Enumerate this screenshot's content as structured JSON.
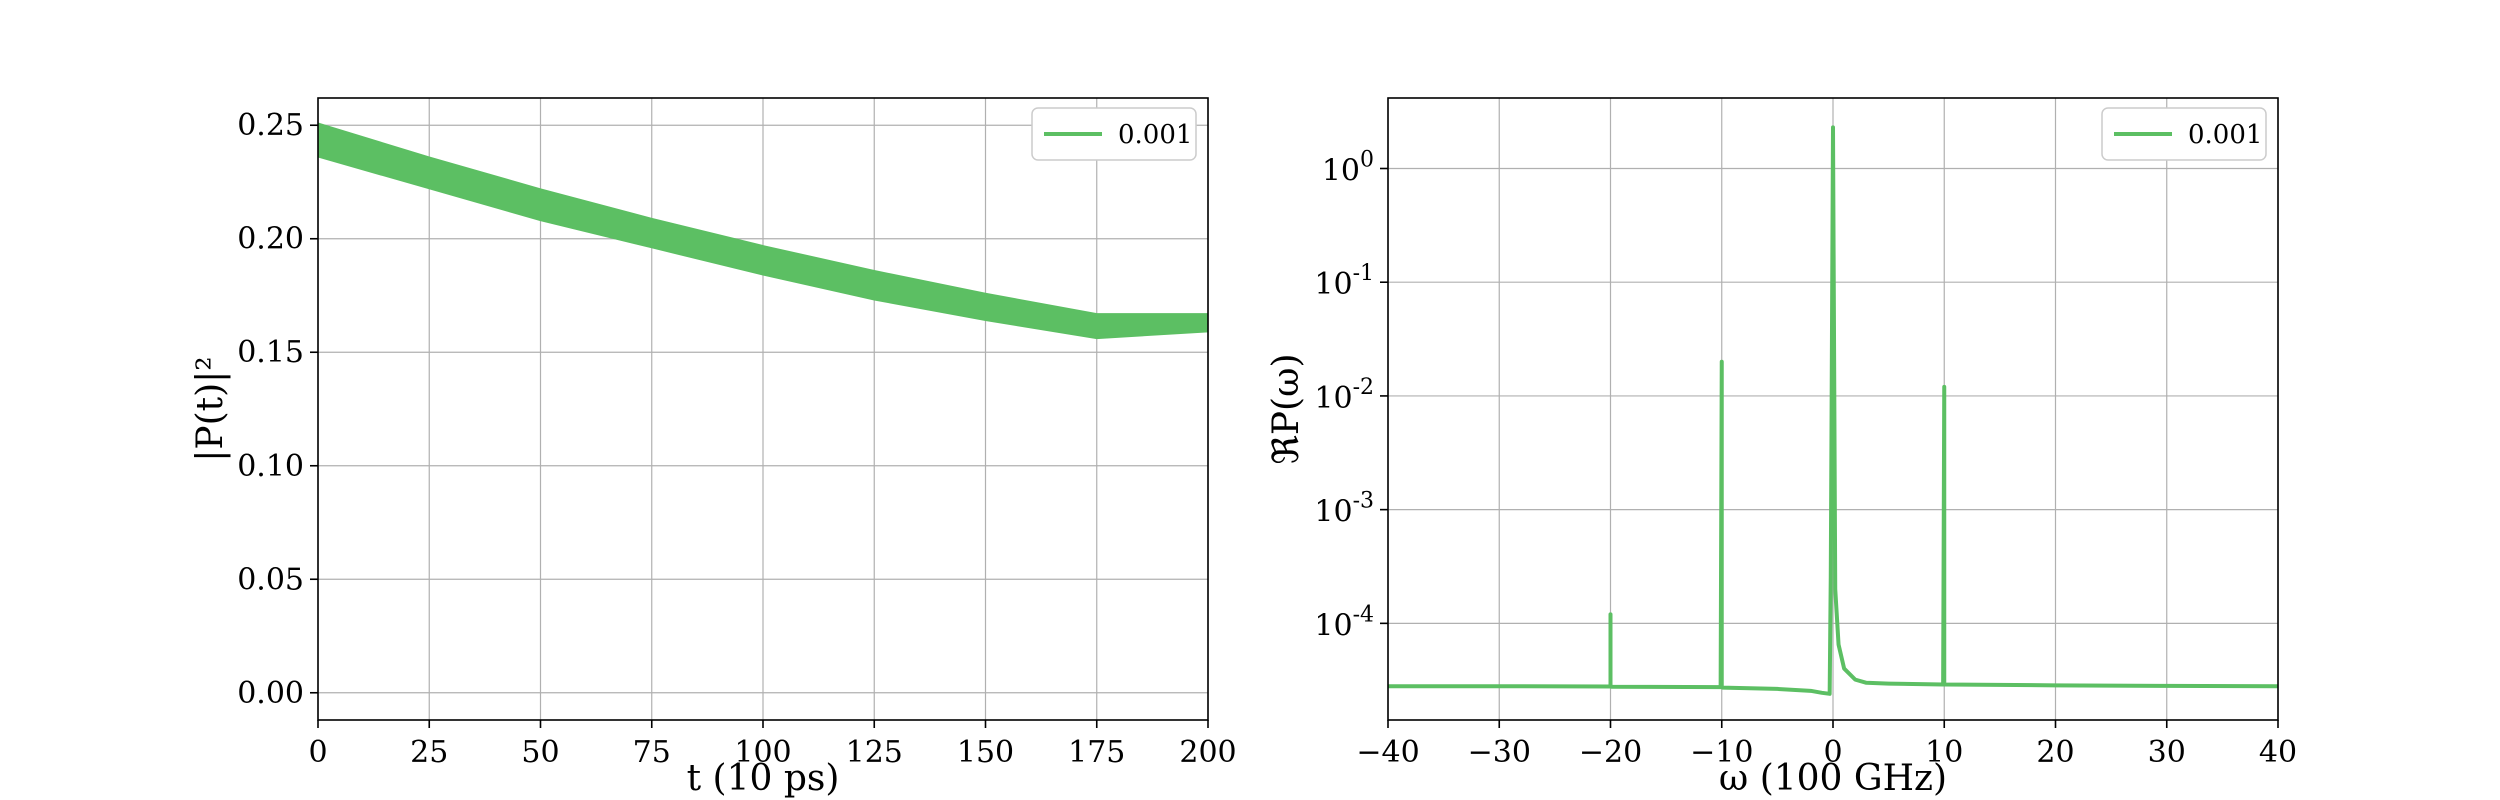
{
  "chart_data": [
    {
      "type": "line",
      "xlabel": "t (10 ps)",
      "ylabel": "|P(t)|²",
      "xlim": [
        0,
        200
      ],
      "ylim": [
        -0.012,
        0.262
      ],
      "xticks": [
        "0",
        "25",
        "50",
        "75",
        "100",
        "125",
        "150",
        "175",
        "200"
      ],
      "xtick_values": [
        0,
        25,
        50,
        75,
        100,
        125,
        150,
        175,
        200
      ],
      "yticks": [
        "0.00",
        "0.05",
        "0.10",
        "0.15",
        "0.20",
        "0.25"
      ],
      "ytick_values": [
        0.0,
        0.05,
        0.1,
        0.15,
        0.2,
        0.25
      ],
      "grid": true,
      "legend_position": "top-right",
      "series": [
        {
          "name": "0.001",
          "color": "#5cbf63",
          "style": "oscillating band",
          "x": [
            0,
            25,
            50,
            75,
            100,
            125,
            150,
            175,
            200
          ],
          "upper": [
            0.251,
            0.236,
            0.222,
            0.209,
            0.197,
            0.186,
            0.176,
            0.167,
            0.167
          ],
          "lower": [
            0.236,
            0.222,
            0.208,
            0.196,
            0.184,
            0.173,
            0.164,
            0.156,
            0.159
          ]
        }
      ]
    },
    {
      "type": "line",
      "xlabel": "ω (100 GHz)",
      "ylabel": "ℜP(ω)",
      "yscale": "log",
      "xlim": [
        -40,
        40
      ],
      "ylim_log10": [
        -4.85,
        0.62
      ],
      "xticks": [
        "−40",
        "−30",
        "−20",
        "−10",
        "0",
        "10",
        "20",
        "30",
        "40"
      ],
      "xtick_values": [
        -40,
        -30,
        -20,
        -10,
        0,
        10,
        20,
        30,
        40
      ],
      "yticks": [
        {
          "base": "10",
          "exp": "0",
          "value": 0
        },
        {
          "base": "10",
          "exp": "-1",
          "value": -1
        },
        {
          "base": "10",
          "exp": "-2",
          "value": -2
        },
        {
          "base": "10",
          "exp": "-3",
          "value": -3
        },
        {
          "base": "10",
          "exp": "-4",
          "value": -4
        }
      ],
      "grid": true,
      "legend_position": "top-right",
      "series": [
        {
          "name": "0.001",
          "color": "#5cbf63",
          "x": [
            -40,
            -30,
            -20,
            -20,
            -20,
            -19.9,
            -10.1,
            -10,
            -10,
            -9.9,
            -5,
            -2,
            -1,
            -0.3,
            -0.2,
            0,
            0.2,
            0.5,
            1,
            2,
            3,
            5,
            9.9,
            10,
            10,
            10.1,
            20,
            30,
            40
          ],
          "y": [
            2.8e-05,
            2.8e-05,
            2.78e-05,
            0.00012,
            2.78e-05,
            2.77e-05,
            2.75e-05,
            0.02,
            2.75e-05,
            2.72e-05,
            2.65e-05,
            2.55e-05,
            2.45e-05,
            2.4e-05,
            0.00026,
            2.3,
            0.0002,
            6.5e-05,
            4e-05,
            3.2e-05,
            3e-05,
            2.95e-05,
            2.9e-05,
            0.012,
            2.9e-05,
            2.9e-05,
            2.85e-05,
            2.82e-05,
            2.8e-05
          ]
        }
      ]
    }
  ]
}
